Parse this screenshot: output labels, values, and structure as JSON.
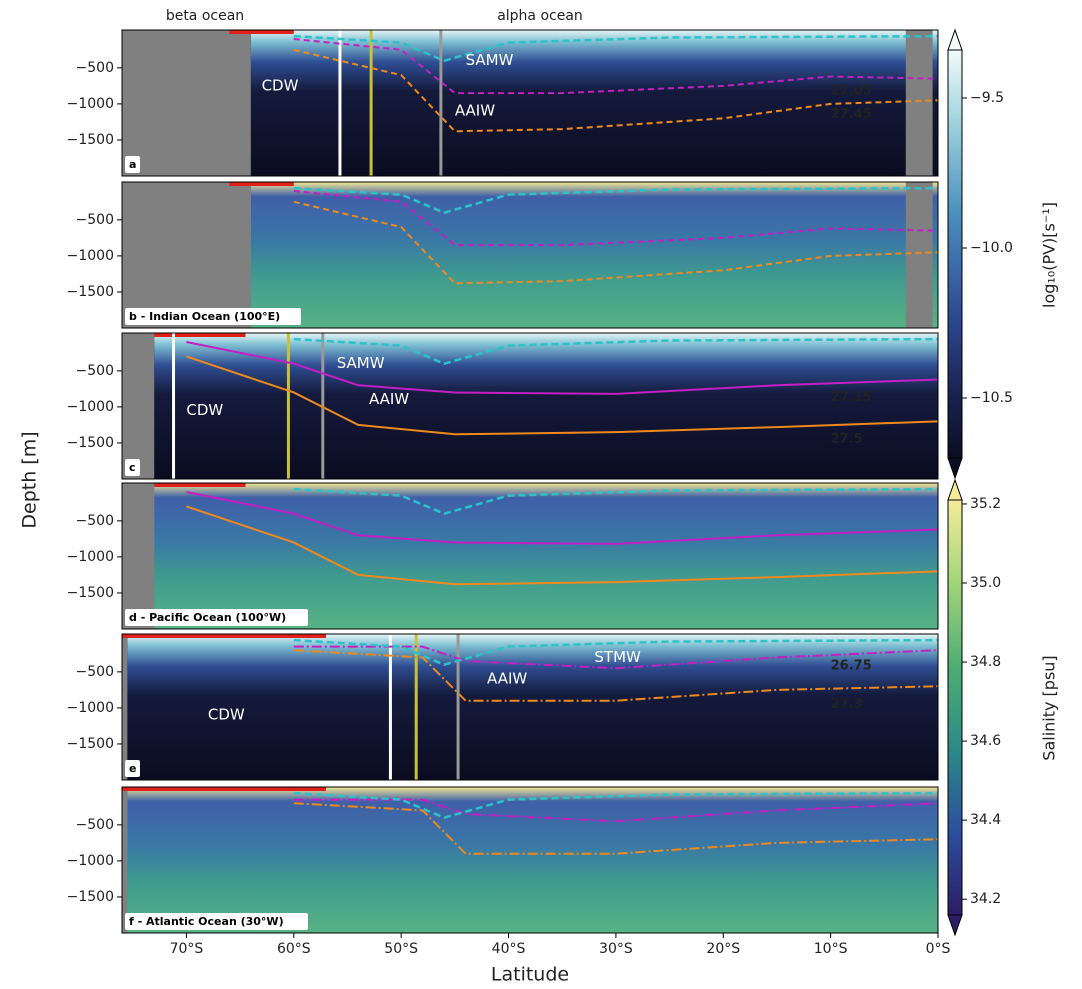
{
  "figure": {
    "top_labels": [
      "beta ocean",
      "alpha ocean"
    ],
    "ylabel": "Depth [m]",
    "xlabel": "Latitude",
    "colorbars": [
      {
        "label": "log₁₀(PV)[s⁻¹]",
        "lim": [
          -10.7,
          -9.34
        ],
        "ticks": [
          {
            "value": -9.5,
            "label": "−9.5"
          },
          {
            "value": -10,
            "label": "−10.0"
          },
          {
            "value": -10.5,
            "label": "−10.5"
          }
        ]
      },
      {
        "label": "Salinity [psu]",
        "lim": [
          34.16,
          35.21
        ],
        "ticks": [
          34.2,
          34.4,
          34.6,
          34.8,
          {
            "value": 35,
            "label": "35.0"
          },
          35.2
        ]
      }
    ]
  },
  "chart_data": [
    {
      "type": "section",
      "label": "a",
      "color": "#0c0d24",
      "xlim": [
        -76,
        0
      ],
      "ylim": [
        -2000,
        25
      ],
      "yticks": [
        {
          "value": -500,
          "label": "−500"
        },
        {
          "value": -1000,
          "label": "−1000"
        },
        {
          "value": -1500,
          "label": "−1500"
        }
      ],
      "annotations": [
        "CDW",
        "SAMW",
        "AAIW"
      ],
      "contour_labels": [
        27.05,
        27.45
      ]
    },
    {
      "type": "section",
      "label": "b - Indian Ocean (100°E)",
      "color": "#3f9b8e",
      "xlim": [
        -76,
        0
      ],
      "ylim": [
        -2000,
        25
      ],
      "yticks": [
        {
          "value": -500,
          "label": "−500"
        },
        {
          "value": -1000,
          "label": "−1000"
        },
        {
          "value": -1500,
          "label": "−1500"
        }
      ],
      "annotations": [],
      "contour_labels": []
    },
    {
      "type": "section",
      "label": "c",
      "color": "#0c0d24",
      "xlim": [
        -76,
        0
      ],
      "ylim": [
        -2000,
        25
      ],
      "yticks": [
        {
          "value": -500,
          "label": "−500"
        },
        {
          "value": -1000,
          "label": "−1000"
        },
        {
          "value": -1500,
          "label": "−1500"
        }
      ],
      "annotations": [
        "SAMW",
        "CDW",
        "AAIW"
      ],
      "contour_labels": [
        27.15,
        27.5
      ]
    },
    {
      "type": "section",
      "label": "d - Pacific Ocean (100°W)",
      "color": "#3f9b8e",
      "xlim": [
        -76,
        0
      ],
      "ylim": [
        -2000,
        25
      ],
      "yticks": [
        {
          "value": -500,
          "label": "−500"
        },
        {
          "value": -1000,
          "label": "−1000"
        },
        {
          "value": -1500,
          "label": "−1500"
        }
      ],
      "annotations": [],
      "contour_labels": []
    },
    {
      "type": "section",
      "label": "e",
      "color": "#0c0d24",
      "xlim": [
        -76,
        0
      ],
      "ylim": [
        -2000,
        25
      ],
      "yticks": [
        {
          "value": -500,
          "label": "−500"
        },
        {
          "value": -1000,
          "label": "−1000"
        },
        {
          "value": -1500,
          "label": "−1500"
        }
      ],
      "annotations": [
        "STMW",
        "AAIW",
        "CDW"
      ],
      "contour_labels": [
        26.75,
        27.3
      ]
    },
    {
      "type": "section",
      "label": "f - Atlantic Ocean (30°W)",
      "color": "#3f9b8e",
      "xlim": [
        -76,
        0
      ],
      "ylim": [
        -2000,
        25
      ],
      "yticks": [
        {
          "value": -500,
          "label": "−500"
        },
        {
          "value": -1000,
          "label": "−1000"
        },
        {
          "value": -1500,
          "label": "−1500"
        }
      ],
      "xticks": [
        {
          "value": -70,
          "label": "70°S"
        },
        {
          "value": -60,
          "label": "60°S"
        },
        {
          "value": -50,
          "label": "50°S"
        },
        {
          "value": -40,
          "label": "40°S"
        },
        {
          "value": -30,
          "label": "30°S"
        },
        {
          "value": -20,
          "label": "20°S"
        },
        {
          "value": -10,
          "label": "10°S"
        },
        {
          "value": 0,
          "label": "0°S"
        }
      ],
      "annotations": [],
      "contour_labels": []
    }
  ]
}
